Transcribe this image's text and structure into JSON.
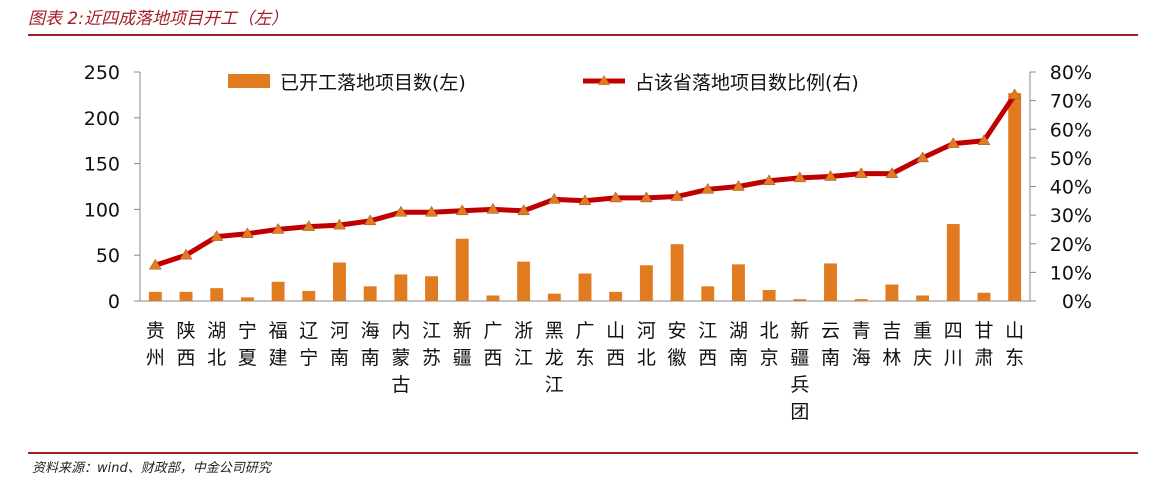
{
  "header": {
    "title": "图表 2:近四成落地项目开工（左）"
  },
  "footer": {
    "source": "资料来源：wind、财政部，中金公司研究"
  },
  "chart_data": {
    "type": "bar",
    "categories": [
      "贵州",
      "陕西",
      "湖北",
      "宁夏",
      "福建",
      "辽宁",
      "河南",
      "海南",
      "内蒙古",
      "江苏",
      "新疆",
      "广西",
      "浙江",
      "黑龙江",
      "广东",
      "山西",
      "河北",
      "安徽",
      "江西",
      "湖南",
      "北京",
      "新疆兵团",
      "云南",
      "青海",
      "吉林",
      "重庆",
      "四川",
      "甘肃",
      "山东"
    ],
    "series": [
      {
        "name": "已开工落地项目数(左)",
        "type": "bar",
        "axis": "left",
        "color": "#e07b1f",
        "values": [
          10,
          10,
          14,
          4,
          21,
          11,
          42,
          16,
          29,
          27,
          68,
          6,
          43,
          8,
          30,
          10,
          39,
          62,
          16,
          40,
          12,
          2,
          41,
          2,
          18,
          6,
          84,
          9,
          227
        ]
      },
      {
        "name": "占该省落地项目数比例(右)",
        "type": "line",
        "axis": "right",
        "color": "#c00000",
        "marker_color": "#e07b1f",
        "values": [
          12.5,
          16,
          22.5,
          23.5,
          25,
          26,
          26.5,
          28,
          31,
          31,
          31.5,
          32,
          31.5,
          35.5,
          35,
          36,
          36,
          36.5,
          39,
          40,
          42,
          43,
          43.5,
          44.5,
          44.5,
          50,
          55,
          56,
          72
        ]
      }
    ],
    "y_left": {
      "ylim": [
        0,
        250
      ],
      "ticks": [
        "0",
        "50",
        "100",
        "150",
        "200",
        "250"
      ]
    },
    "y_right": {
      "ylim": [
        0,
        80
      ],
      "ticks": [
        "0%",
        "10%",
        "20%",
        "30%",
        "40%",
        "50%",
        "60%",
        "70%",
        "80%"
      ]
    },
    "legend": {
      "placement": "top"
    },
    "grid": false
  }
}
